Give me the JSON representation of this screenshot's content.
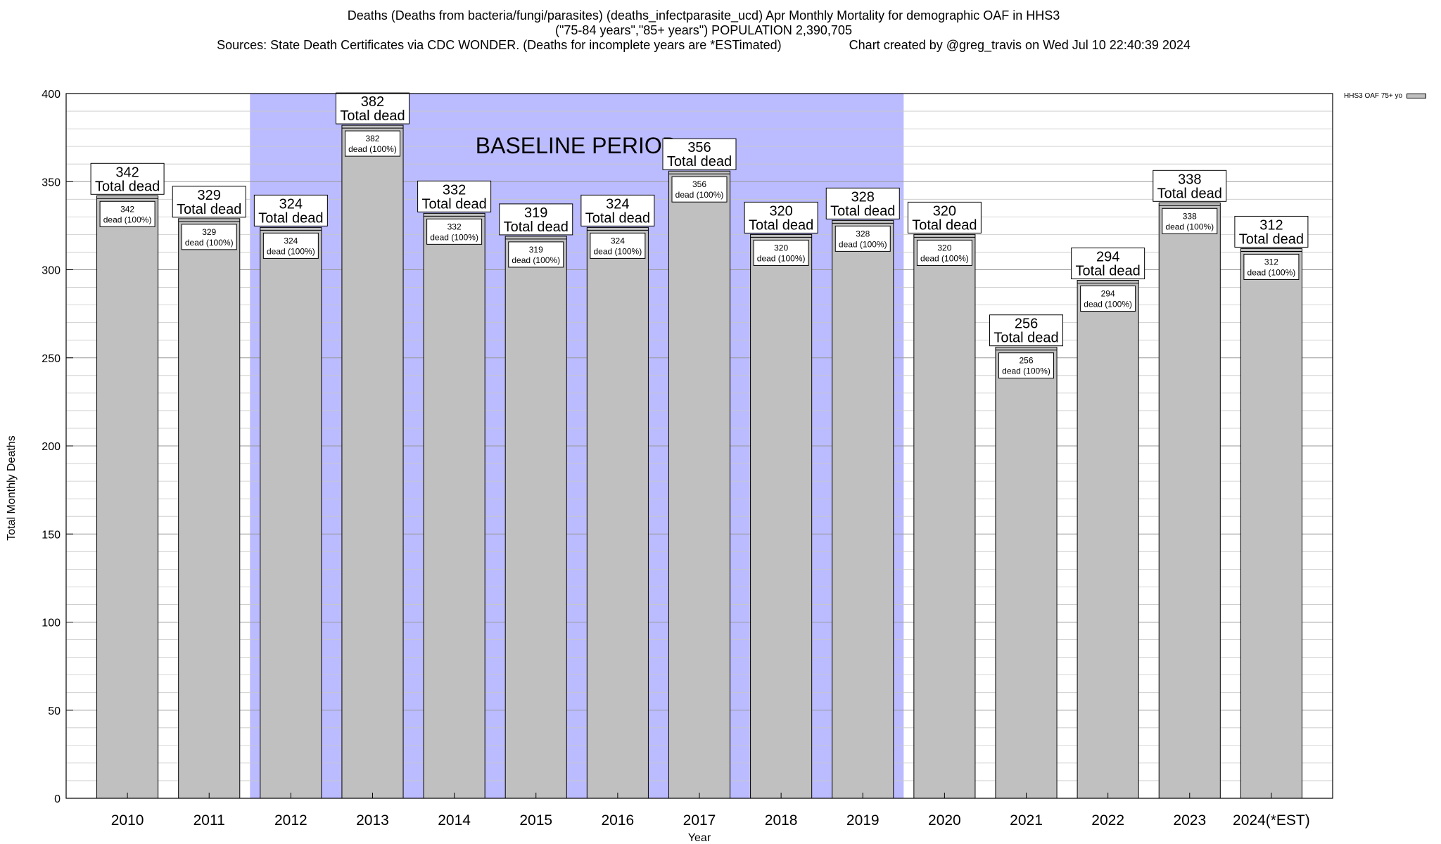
{
  "header": {
    "title_line1": "Deaths (Deaths from bacteria/fungi/parasites) (deaths_infectparasite_ucd) Apr Monthly Mortality for demographic OAF in HHS3",
    "title_line2": "(\"75-84 years\",\"85+ years\") POPULATION 2,390,705",
    "sources": "Sources: State Death Certificates via CDC WONDER. (Deaths for incomplete years are *ESTimated)",
    "credit": "Chart created by @greg_travis on Wed Jul 10 22:40:39 2024"
  },
  "chart_data": {
    "type": "bar",
    "xlabel": "Year",
    "ylabel": "Total Monthly Deaths",
    "ylim": [
      0,
      400
    ],
    "yticks": [
      0,
      50,
      100,
      150,
      200,
      250,
      300,
      350,
      400
    ],
    "minor_grid_step": 10,
    "grid": true,
    "categories": [
      "2010",
      "2011",
      "2012",
      "2013",
      "2014",
      "2015",
      "2016",
      "2017",
      "2018",
      "2019",
      "2020",
      "2021",
      "2022",
      "2023",
      "2024(*EST)"
    ],
    "series": [
      {
        "name": "HHS3 OAF 75+ yo",
        "color": "#c0c0c0",
        "values": [
          342,
          329,
          324,
          382,
          332,
          319,
          324,
          356,
          320,
          328,
          320,
          256,
          294,
          338,
          312
        ]
      }
    ],
    "top_label_suffix": "Total dead",
    "inner_label_suffix": "dead (100%)",
    "baseline_period": {
      "label": "BASELINE PERIOD",
      "from": "2012",
      "to": "2019",
      "color": "#bbbbff"
    },
    "legend": {
      "label": "HHS3 OAF 75+ yo",
      "position": "top-right"
    }
  }
}
